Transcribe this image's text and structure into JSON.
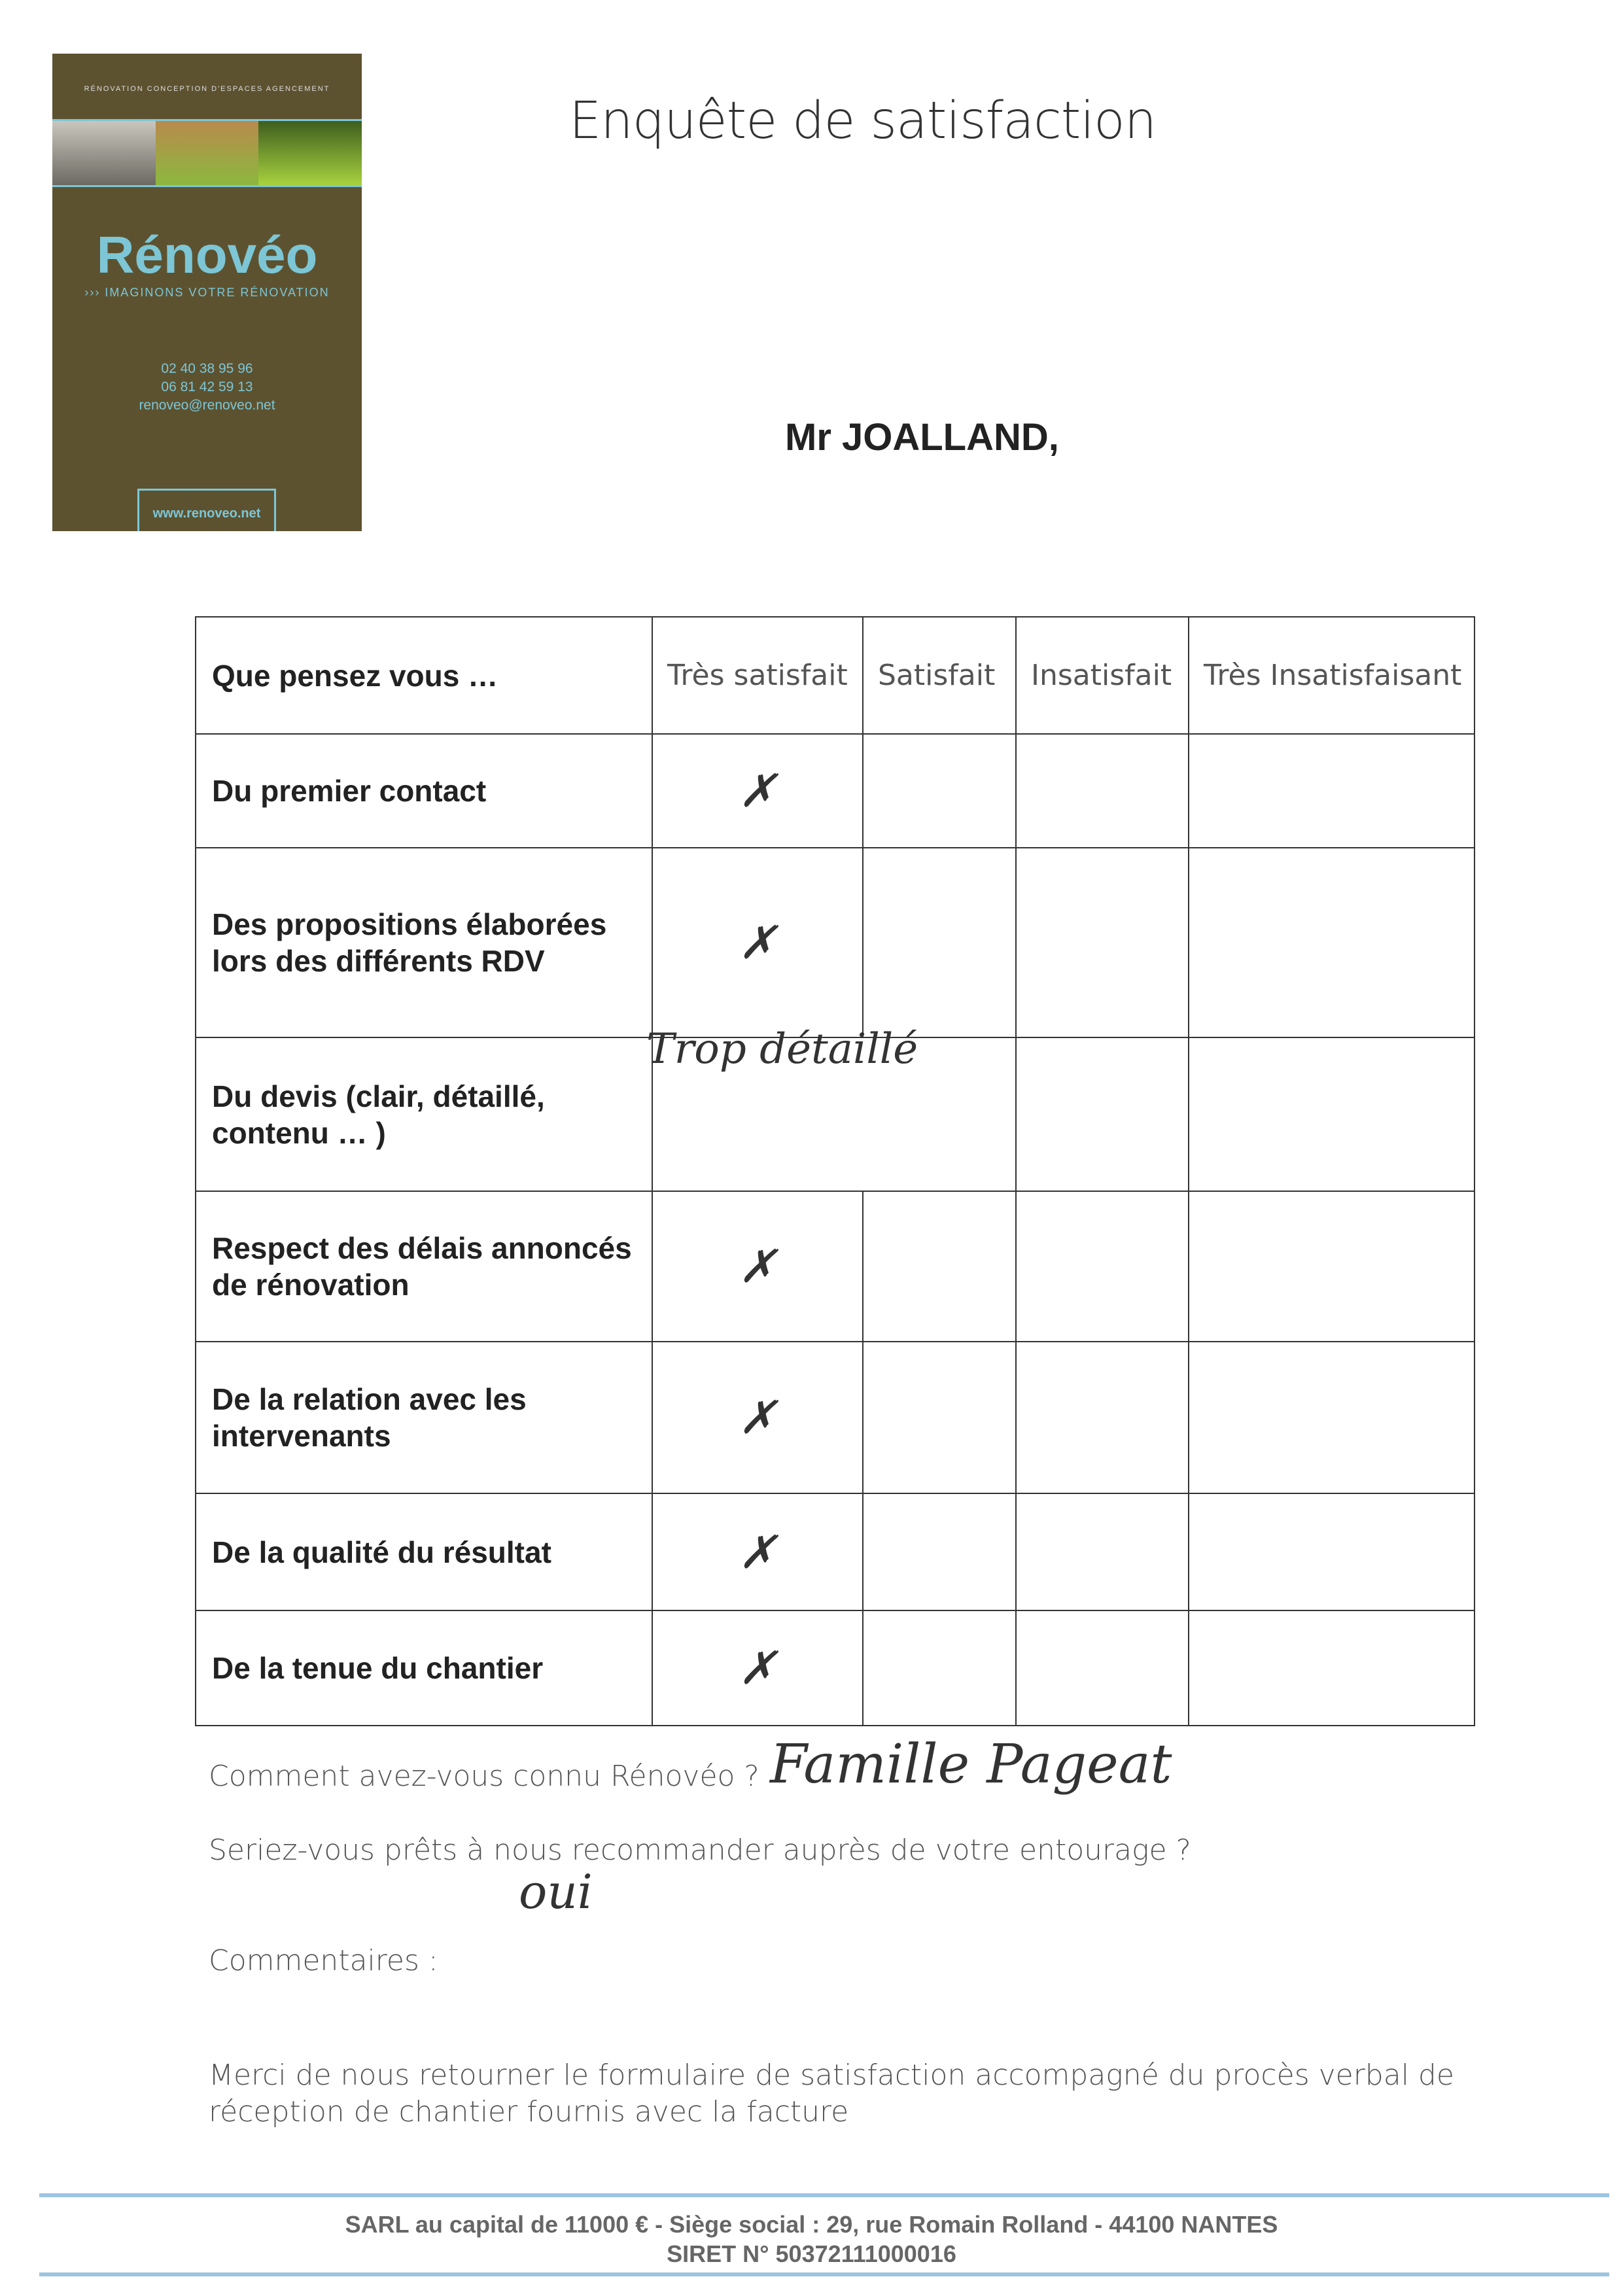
{
  "logo": {
    "top_line": "RÉNOVATION   CONCEPTION D'ESPACES   AGENCEMENT",
    "brand": "Rénovéo",
    "tagline": "››› IMAGINONS VOTRE RÉNOVATION",
    "phone1": "02 40 38 95 96",
    "phone2": "06 81 42 59 13",
    "email": "renoveo@renoveo.net",
    "website": "www.renoveo.net"
  },
  "title": "Enquête de satisfaction",
  "client": "Mr JOALLAND,",
  "table": {
    "headers": [
      "Que pensez vous …",
      "Très satisfait",
      "Satisfait",
      "Insatisfait",
      "Très Insatisfaisant"
    ],
    "rows": [
      {
        "question": "Du premier contact",
        "answer": "Très satisfait",
        "mark": "✗"
      },
      {
        "question": "Des propositions élaborées lors des différents RDV",
        "answer": "Très satisfait",
        "mark": "✗"
      },
      {
        "question": "Du devis (clair, détaillé, contenu … )",
        "note": "Trop détaillé"
      },
      {
        "question": "Respect des délais annoncés de rénovation",
        "answer": "Très satisfait",
        "mark": "✗"
      },
      {
        "question": "De la relation avec les intervenants",
        "answer": "Très satisfait",
        "mark": "✗"
      },
      {
        "question": "De la qualité du résultat",
        "answer": "Très satisfait",
        "mark": "✗"
      },
      {
        "question": "De la tenue du chantier",
        "answer": "Très satisfait",
        "mark": "✗"
      }
    ]
  },
  "q_source": {
    "label": "Comment avez-vous connu Rénovéo ?",
    "answer": "Famille Pageat"
  },
  "q_recommend": {
    "label": "Seriez-vous prêts à nous recommander auprès de votre entourage ?",
    "answer": "oui"
  },
  "comments_label": "Commentaires :",
  "return_note": [
    "Merci de nous retourner le formulaire de satisfaction accompagné du procès verbal de",
    "réception de chantier fournis avec la facture"
  ],
  "footer": {
    "line1": "SARL au capital de 11000 € - Siège social : 29, rue Romain Rolland - 44100 NANTES",
    "line2": "SIRET N° 50372111000016"
  }
}
